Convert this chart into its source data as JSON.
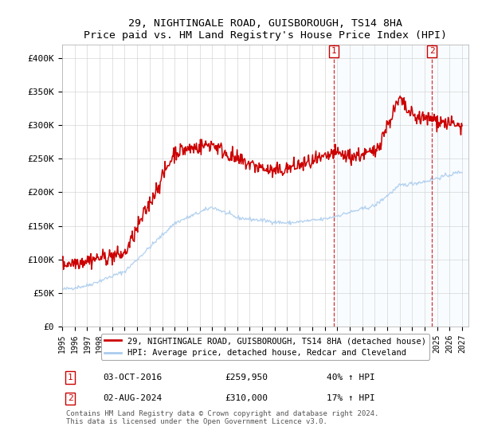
{
  "title": "29, NIGHTINGALE ROAD, GUISBOROUGH, TS14 8HA",
  "subtitle": "Price paid vs. HM Land Registry's House Price Index (HPI)",
  "ylim": [
    0,
    420000
  ],
  "yticks": [
    0,
    50000,
    100000,
    150000,
    200000,
    250000,
    300000,
    350000,
    400000
  ],
  "ytick_labels": [
    "£0",
    "£50K",
    "£100K",
    "£150K",
    "£200K",
    "£250K",
    "£300K",
    "£350K",
    "£400K"
  ],
  "legend_line1": "29, NIGHTINGALE ROAD, GUISBOROUGH, TS14 8HA (detached house)",
  "legend_line2": "HPI: Average price, detached house, Redcar and Cleveland",
  "sale1_date": "03-OCT-2016",
  "sale1_price": "£259,950",
  "sale1_hpi": "40% ↑ HPI",
  "sale2_date": "02-AUG-2024",
  "sale2_price": "£310,000",
  "sale2_hpi": "17% ↑ HPI",
  "footer": "Contains HM Land Registry data © Crown copyright and database right 2024.\nThis data is licensed under the Open Government Licence v3.0.",
  "hpi_color": "#aaccee",
  "price_color": "#cc0000",
  "sale1_x": 2016.75,
  "sale2_x": 2024.58,
  "shading_color": "#ddeeff"
}
